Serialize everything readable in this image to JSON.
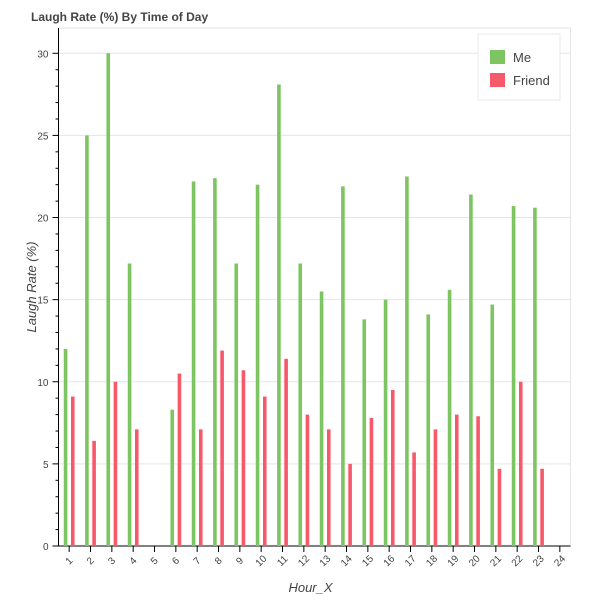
{
  "chart_data": {
    "type": "bar",
    "title": "Laugh Rate (%) By Time of Day",
    "xlabel": "Hour_X",
    "ylabel": "Laugh Rate (%)",
    "categories": [
      "1",
      "2",
      "3",
      "4",
      "5",
      "6",
      "7",
      "8",
      "9",
      "10",
      "11",
      "12",
      "13",
      "14",
      "15",
      "16",
      "17",
      "18",
      "19",
      "20",
      "21",
      "22",
      "23",
      "24"
    ],
    "ylim": [
      0,
      30
    ],
    "yticks": [
      0,
      5,
      10,
      15,
      20,
      25,
      30
    ],
    "grid": true,
    "legend_position": "top-right",
    "series": [
      {
        "name": "Me",
        "color": "#7dc462",
        "values": [
          12,
          25,
          30,
          17.2,
          0,
          8.3,
          22.2,
          22.4,
          17.2,
          22,
          28.1,
          17.2,
          15.5,
          21.9,
          13.8,
          15,
          22.5,
          14.1,
          15.6,
          21.4,
          14.7,
          20.7,
          20.6,
          0
        ]
      },
      {
        "name": "Friend",
        "color": "#f65a6a",
        "values": [
          9.1,
          6.4,
          10,
          7.1,
          0,
          10.5,
          7.1,
          11.9,
          10.7,
          9.1,
          11.4,
          8.0,
          7.1,
          5.0,
          7.8,
          9.5,
          5.7,
          7.1,
          8.0,
          7.9,
          4.7,
          10.0,
          4.7,
          0
        ]
      }
    ]
  }
}
